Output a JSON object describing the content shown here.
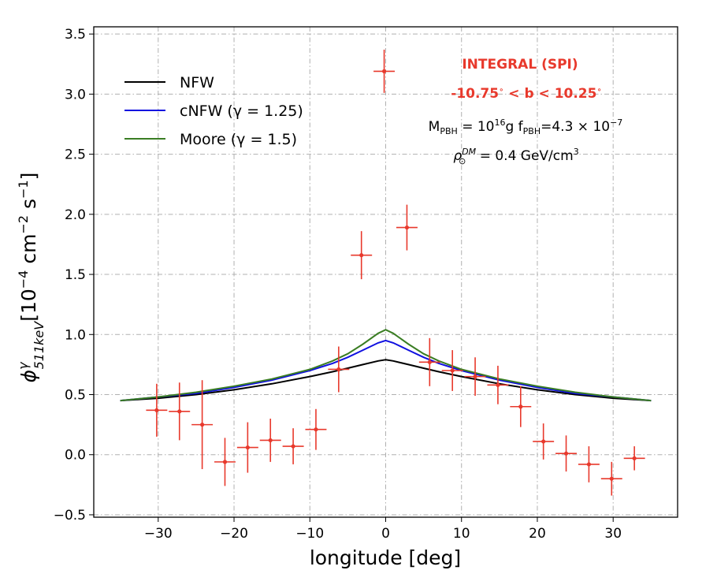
{
  "chart_data": {
    "type": "scatter",
    "xlabel": "longitude [deg]",
    "ylabel": "ϕ511keV γ [10⁻⁴ cm⁻² s⁻¹]",
    "ylabel_parts": {
      "phi": "ϕ",
      "sup": "γ",
      "sub": "511keV",
      "unit_main": "[10",
      "unit_exp1": "−4",
      "unit_mid": " cm",
      "unit_exp2": "−2",
      "unit_s": " s",
      "unit_exp3": "−1",
      "unit_end": "]"
    },
    "xlim": [
      -38.5,
      38.5
    ],
    "ylim": [
      -0.52,
      3.56
    ],
    "xticks": [
      -30,
      -20,
      -10,
      0,
      10,
      20,
      30
    ],
    "xtick_labels": [
      "−30",
      "−20",
      "−10",
      "0",
      "10",
      "20",
      "30"
    ],
    "yticks": [
      -0.5,
      0.0,
      0.5,
      1.0,
      1.5,
      2.0,
      2.5,
      3.0,
      3.5
    ],
    "ytick_labels": [
      "−0.5",
      "0.0",
      "0.5",
      "1.0",
      "1.5",
      "2.0",
      "2.5",
      "3.0",
      "3.5"
    ],
    "grid": true,
    "legend_position": "upper-left",
    "annotations": {
      "instrument": "INTEGRAL (SPI)",
      "lat_range": "-10.75° < b < 10.25°",
      "pbh_params": "M_PBH = 10^16 g  f_PBH = 4.3 × 10^-7",
      "rho": "ρ⊙^DM = 0.4 GeV/cm³",
      "pbh_M": "M",
      "pbh_M_sub": "PBH",
      "pbh_eq1": " = 10",
      "pbh_exp": "16",
      "pbh_g": "g  f",
      "pbh_f_sub": "PBH",
      "pbh_eq2": "=4.3 × 10",
      "pbh_exp2": "−7",
      "rho_sym": "ρ",
      "rho_sub": "⊙",
      "rho_sup": "DM",
      "rho_val": " = 0.4 GeV/cm",
      "rho_exp": "3",
      "lat_main": "-10.75",
      "lat_deg1": "∘",
      "lat_mid": " < b < 10.25",
      "lat_deg2": "∘"
    },
    "series": [
      {
        "name": "NFW",
        "kind": "line",
        "color": "#000000",
        "x": [
          -35,
          -30,
          -25,
          -20,
          -15,
          -10,
          -7,
          -5,
          -3,
          -1,
          0,
          1,
          3,
          5,
          7,
          10,
          15,
          20,
          25,
          30,
          35
        ],
        "y": [
          0.45,
          0.47,
          0.5,
          0.54,
          0.59,
          0.65,
          0.69,
          0.72,
          0.75,
          0.78,
          0.79,
          0.78,
          0.75,
          0.72,
          0.69,
          0.65,
          0.59,
          0.54,
          0.5,
          0.47,
          0.45
        ]
      },
      {
        "name": "cNFW (γ = 1.25)",
        "kind": "line",
        "color": "#1010e0",
        "x": [
          -35,
          -30,
          -25,
          -20,
          -15,
          -10,
          -7,
          -5,
          -3,
          -1,
          0,
          1,
          3,
          5,
          7,
          10,
          15,
          20,
          25,
          30,
          35
        ],
        "y": [
          0.45,
          0.48,
          0.51,
          0.56,
          0.62,
          0.7,
          0.76,
          0.81,
          0.87,
          0.93,
          0.95,
          0.93,
          0.87,
          0.81,
          0.76,
          0.7,
          0.62,
          0.56,
          0.51,
          0.48,
          0.45
        ]
      },
      {
        "name": "Moore (γ = 1.5)",
        "kind": "line",
        "color": "#3a7d23",
        "x": [
          -35,
          -30,
          -25,
          -20,
          -15,
          -10,
          -7,
          -5,
          -3,
          -1,
          0,
          1,
          3,
          5,
          7,
          10,
          15,
          20,
          25,
          30,
          35
        ],
        "y": [
          0.45,
          0.48,
          0.52,
          0.57,
          0.63,
          0.71,
          0.78,
          0.84,
          0.92,
          1.01,
          1.04,
          1.01,
          0.92,
          0.84,
          0.78,
          0.71,
          0.63,
          0.57,
          0.52,
          0.48,
          0.45
        ]
      },
      {
        "name": "INTEGRAL (SPI)",
        "kind": "errorbar",
        "color": "#e8392c",
        "x": [
          -30.2,
          -27.2,
          -24.2,
          -21.2,
          -18.2,
          -15.2,
          -12.2,
          -9.2,
          -6.2,
          -3.2,
          -0.2,
          2.8,
          5.8,
          8.8,
          11.8,
          14.8,
          17.8,
          20.8,
          23.8,
          26.8,
          29.8,
          32.8
        ],
        "y": [
          0.37,
          0.36,
          0.25,
          -0.06,
          0.06,
          0.12,
          0.07,
          0.21,
          0.71,
          1.66,
          3.19,
          1.89,
          0.77,
          0.7,
          0.65,
          0.58,
          0.4,
          0.11,
          0.01,
          -0.08,
          -0.2,
          -0.03
        ],
        "yerr": [
          0.22,
          0.24,
          0.37,
          0.2,
          0.21,
          0.18,
          0.15,
          0.17,
          0.19,
          0.2,
          0.18,
          0.19,
          0.2,
          0.17,
          0.16,
          0.16,
          0.17,
          0.15,
          0.15,
          0.15,
          0.14,
          0.1
        ],
        "xerr": 1.4
      }
    ]
  }
}
